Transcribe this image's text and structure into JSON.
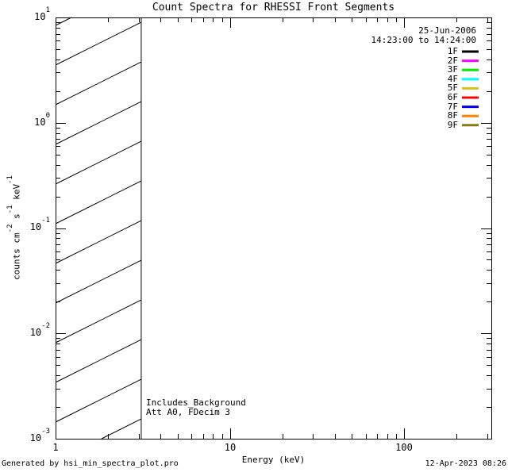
{
  "title": "Count Spectra for RHESSI Front Segments",
  "header": {
    "date": "25-Jun-2006",
    "time_range": "14:23:00 to 14:24:00"
  },
  "legend": {
    "entries": [
      {
        "label": "1F",
        "color": "#000000"
      },
      {
        "label": "2F",
        "color": "#ff00ff"
      },
      {
        "label": "3F",
        "color": "#00ee00"
      },
      {
        "label": "4F",
        "color": "#00ffff"
      },
      {
        "label": "5F",
        "color": "#d2c41d"
      },
      {
        "label": "6F",
        "color": "#ff0000"
      },
      {
        "label": "7F",
        "color": "#0000ff"
      },
      {
        "label": "8F",
        "color": "#ff8200"
      },
      {
        "label": "9F",
        "color": "#867a15"
      }
    ]
  },
  "annotations": {
    "line1": "Includes_Background",
    "line2": "Att A0, FDecim 3"
  },
  "axes": {
    "x": {
      "label": "Energy (keV)",
      "ticks": [
        "1",
        "10",
        "100"
      ],
      "scale": "log"
    },
    "y": {
      "label": "counts cm^-2 s^-1 keV^-1",
      "label_parts": {
        "p1": "counts cm",
        "s1": "-2",
        "p2": " s",
        "s2": "-1",
        "p3": " keV",
        "s3": "-1"
      },
      "ticks": [
        {
          "base": "10",
          "exp": "1"
        },
        {
          "base": "10",
          "exp": "0"
        },
        {
          "base": "10",
          "exp": "-1"
        },
        {
          "base": "10",
          "exp": "-2"
        },
        {
          "base": "10",
          "exp": "-3"
        }
      ],
      "scale": "log"
    }
  },
  "footer": {
    "left": "Generated by hsi_min_spectra_plot.pro",
    "right": "12-Apr-2023 08:26"
  },
  "chart_data": {
    "type": "line",
    "title": "Count Spectra for RHESSI Front Segments",
    "xlabel": "Energy (keV)",
    "ylabel": "counts cm^-2 s^-1 keV^-1",
    "xscale": "log",
    "yscale": "log",
    "xlim": [
      1,
      316
    ],
    "ylim": [
      0.001,
      10
    ],
    "x_major_ticks": [
      1,
      10,
      100
    ],
    "y_major_ticks": [
      10,
      1,
      0.1,
      0.01,
      0.001
    ],
    "grid": false,
    "legend_position": "top-right",
    "hatch_region": {
      "x_start": 1,
      "x_end": 3.1
    },
    "series": [
      {
        "name": "1F",
        "color": "#000000",
        "values": []
      },
      {
        "name": "2F",
        "color": "#ff00ff",
        "values": []
      },
      {
        "name": "3F",
        "color": "#00ee00",
        "values": []
      },
      {
        "name": "4F",
        "color": "#00ffff",
        "values": []
      },
      {
        "name": "5F",
        "color": "#d2c41d",
        "values": []
      },
      {
        "name": "6F",
        "color": "#ff0000",
        "values": []
      },
      {
        "name": "7F",
        "color": "#0000ff",
        "values": []
      },
      {
        "name": "8F",
        "color": "#ff8200",
        "values": []
      },
      {
        "name": "9F",
        "color": "#867a15",
        "values": []
      }
    ],
    "text_annotations": [
      "25-Jun-2006",
      "14:23:00 to 14:24:00",
      "Includes_Background",
      "Att A0, FDecim 3"
    ]
  }
}
